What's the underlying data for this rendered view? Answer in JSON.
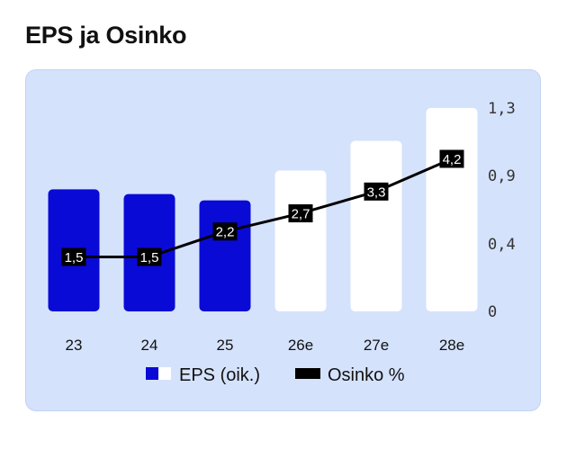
{
  "title": "EPS ja Osinko",
  "chart_data": {
    "type": "bar",
    "categories": [
      "23",
      "24",
      "25",
      "26e",
      "27e",
      "28e"
    ],
    "series": [
      {
        "name": "EPS (oik.)",
        "type": "bar",
        "axis": "right",
        "values": [
          0.78,
          0.75,
          0.71,
          0.9,
          1.09,
          1.3
        ],
        "colors": [
          "#0a0ad6",
          "#0a0ad6",
          "#0a0ad6",
          "#ffffff",
          "#ffffff",
          "#ffffff"
        ]
      },
      {
        "name": "Osinko %",
        "type": "line",
        "values": [
          1.5,
          1.5,
          2.2,
          2.7,
          3.3,
          4.2
        ],
        "labels": [
          "1,5",
          "1,5",
          "2,2",
          "2,7",
          "3,3",
          "4,2"
        ],
        "color": "#000000"
      }
    ],
    "y_right": {
      "ticks": [
        0,
        0.43,
        0.87,
        1.3
      ],
      "tick_labels": [
        "0",
        "0,4",
        "0,9",
        "1,3"
      ],
      "ylim": [
        0,
        1.3
      ]
    },
    "line_scale": {
      "ylim": [
        0,
        5.6
      ]
    },
    "legend": {
      "position": "bottom",
      "items": [
        {
          "label": "EPS (oik.)",
          "colors": [
            "#0a0ad6",
            "#ffffff"
          ]
        },
        {
          "label": "Osinko %",
          "colors": [
            "#000000"
          ]
        }
      ]
    },
    "grid": false
  }
}
